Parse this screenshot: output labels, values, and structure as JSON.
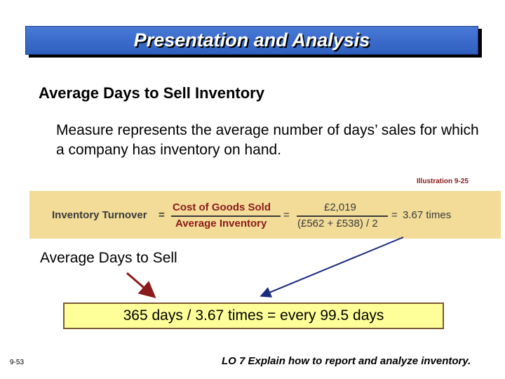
{
  "title": "Presentation and Analysis",
  "heading": "Average Days to Sell Inventory",
  "body_text": "Measure represents the average number of days’ sales for which a company has inventory on hand.",
  "illustration_label": "Illustration 9-25",
  "formula": {
    "lhs": "Inventory Turnover",
    "equals1": "=",
    "numerator_label": "Cost of Goods Sold",
    "denominator_label": "Average Inventory",
    "equals2": "=",
    "numerator_value": "£2,019",
    "denominator_value": "(£562 + £538) / 2",
    "equals3": "=",
    "result": "3.67 times"
  },
  "sub_heading": "Average Days to Sell",
  "result_text": "365 days / 3.67 times = every 99.5 days",
  "page_number": "9-53",
  "learning_objective": "LO 7 Explain how to report and analyze inventory.",
  "colors": {
    "title_bg": "#3366cc",
    "formula_band": "#f2dc98",
    "result_box": "#ffff99",
    "arrow_left": "#8b1a1a",
    "arrow_right": "#1a2a80"
  }
}
